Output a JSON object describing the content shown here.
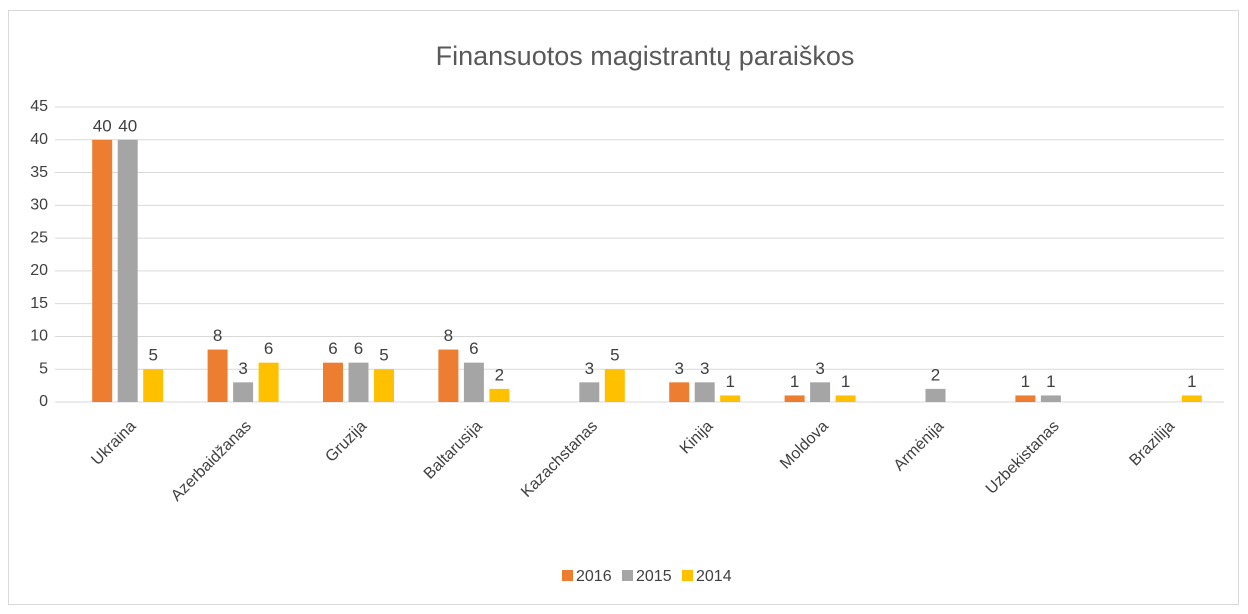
{
  "chart_data": {
    "type": "bar",
    "title": "Finansuotos magistrantų paraiškos",
    "categories": [
      "Ukraina",
      "Azerbaidžanas",
      "Gruzija",
      "Baltarusija",
      "Kazachstanas",
      "Kinija",
      "Moldova",
      "Armėnija",
      "Uzbekistanas",
      "Brazilija"
    ],
    "series": [
      {
        "name": "2016",
        "color": "#ed7d31",
        "values": [
          40,
          8,
          6,
          8,
          null,
          3,
          1,
          null,
          1,
          null
        ]
      },
      {
        "name": "2015",
        "color": "#a5a5a5",
        "values": [
          40,
          3,
          6,
          6,
          3,
          3,
          3,
          2,
          1,
          null
        ]
      },
      {
        "name": "2014",
        "color": "#ffc000",
        "values": [
          5,
          6,
          5,
          2,
          5,
          1,
          1,
          null,
          null,
          1
        ]
      }
    ],
    "ylim": [
      0,
      45
    ],
    "yticks": [
      0,
      5,
      10,
      15,
      20,
      25,
      30,
      35,
      40,
      45
    ],
    "grid": true,
    "legend": "bottom"
  }
}
